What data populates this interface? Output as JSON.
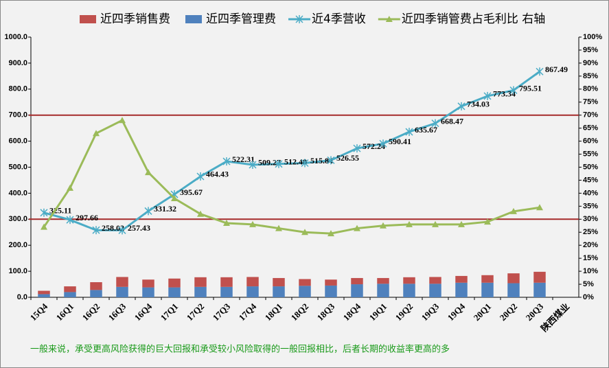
{
  "chart_data": {
    "type": "combo",
    "categories": [
      "15Q4",
      "16Q1",
      "16Q2",
      "16Q3",
      "16Q4",
      "17Q1",
      "17Q2",
      "17Q3",
      "17Q4",
      "18Q1",
      "18Q2",
      "18Q3",
      "18Q4",
      "19Q1",
      "19Q2",
      "19Q3",
      "19Q4",
      "20Q1",
      "20Q2",
      "20Q3",
      "陕西煤业"
    ],
    "series": [
      {
        "name": "近四季销售费",
        "kind": "bar",
        "stack": true,
        "color": "#c0504d",
        "values": [
          13,
          22,
          30,
          38,
          30,
          34,
          37,
          37,
          36,
          32,
          26,
          23,
          24,
          22,
          25,
          26,
          26,
          29,
          38,
          42,
          null
        ]
      },
      {
        "name": "近四季管理费",
        "kind": "bar",
        "stack": true,
        "color": "#4f81bd",
        "values": [
          12,
          20,
          28,
          40,
          38,
          38,
          40,
          40,
          42,
          42,
          44,
          45,
          50,
          52,
          52,
          52,
          56,
          56,
          54,
          56,
          null
        ]
      },
      {
        "name": "近4季营收",
        "kind": "line",
        "marker": "star",
        "color": "#4bacc6",
        "values": [
          325.11,
          297.66,
          258.02,
          257.43,
          331.32,
          395.67,
          464.43,
          522.31,
          509.27,
          512.4,
          515.84,
          526.55,
          572.24,
          590.41,
          635.67,
          668.47,
          734.03,
          773.34,
          795.51,
          867.49,
          null
        ],
        "value_labels": [
          "325.11",
          "297.66",
          "258.02",
          "257.43",
          "331.32",
          "395.67",
          "464.43",
          "522.31",
          "509.27",
          "512.40",
          "515.84",
          "526.55",
          "572.24",
          "590.41",
          "635.67",
          "668.47",
          "734.03",
          "773.34",
          "795.51",
          "867.49",
          null
        ]
      },
      {
        "name": "近四季销管费占毛利比 右轴",
        "kind": "line",
        "marker": "triangle",
        "color": "#9bbb59",
        "axis": "y2",
        "values": [
          27,
          42,
          63,
          68,
          48,
          38,
          32,
          28.5,
          28,
          26.5,
          25,
          24.5,
          26.5,
          27.5,
          28,
          28,
          28,
          29,
          33,
          34.5,
          null
        ]
      }
    ],
    "ylim": [
      0,
      1000
    ],
    "yticks": [
      {
        "value": 0,
        "label": "0.0"
      },
      {
        "value": 100,
        "label": "100.0"
      },
      {
        "value": 200,
        "label": "200.0"
      },
      {
        "value": 300,
        "label": "300.0"
      },
      {
        "value": 400,
        "label": "400.0"
      },
      {
        "value": 500,
        "label": "500.0"
      },
      {
        "value": 600,
        "label": "600.0"
      },
      {
        "value": 700,
        "label": "700.0"
      },
      {
        "value": 800,
        "label": "800.0"
      },
      {
        "value": 900,
        "label": "900.0"
      },
      {
        "value": 1000,
        "label": "1000.0"
      }
    ],
    "y2lim": [
      0,
      100
    ],
    "y2ticks": [
      {
        "value": 0,
        "label": "0%"
      },
      {
        "value": 5,
        "label": "5%"
      },
      {
        "value": 10,
        "label": "10%"
      },
      {
        "value": 15,
        "label": "15%"
      },
      {
        "value": 20,
        "label": "20%"
      },
      {
        "value": 25,
        "label": "25%"
      },
      {
        "value": 30,
        "label": "30%"
      },
      {
        "value": 35,
        "label": "35%"
      },
      {
        "value": 40,
        "label": "40%"
      },
      {
        "value": 45,
        "label": "45%"
      },
      {
        "value": 50,
        "label": "50%"
      },
      {
        "value": 55,
        "label": "55%"
      },
      {
        "value": 60,
        "label": "60%"
      },
      {
        "value": 65,
        "label": "65%"
      },
      {
        "value": 70,
        "label": "70%"
      },
      {
        "value": 75,
        "label": "75%"
      },
      {
        "value": 80,
        "label": "80%"
      },
      {
        "value": 85,
        "label": "85%"
      },
      {
        "value": 90,
        "label": "90%"
      },
      {
        "value": 95,
        "label": "95%"
      },
      {
        "value": 100,
        "label": "100%"
      }
    ],
    "reference_lines": {
      "color": "#a52a2a",
      "values": [
        700,
        300
      ]
    },
    "legend": "top",
    "note": "一般来说，承受更高风险获得的巨大回报和承受较小风险取得的一般回报相比，后者长期的收益率更高的多"
  }
}
